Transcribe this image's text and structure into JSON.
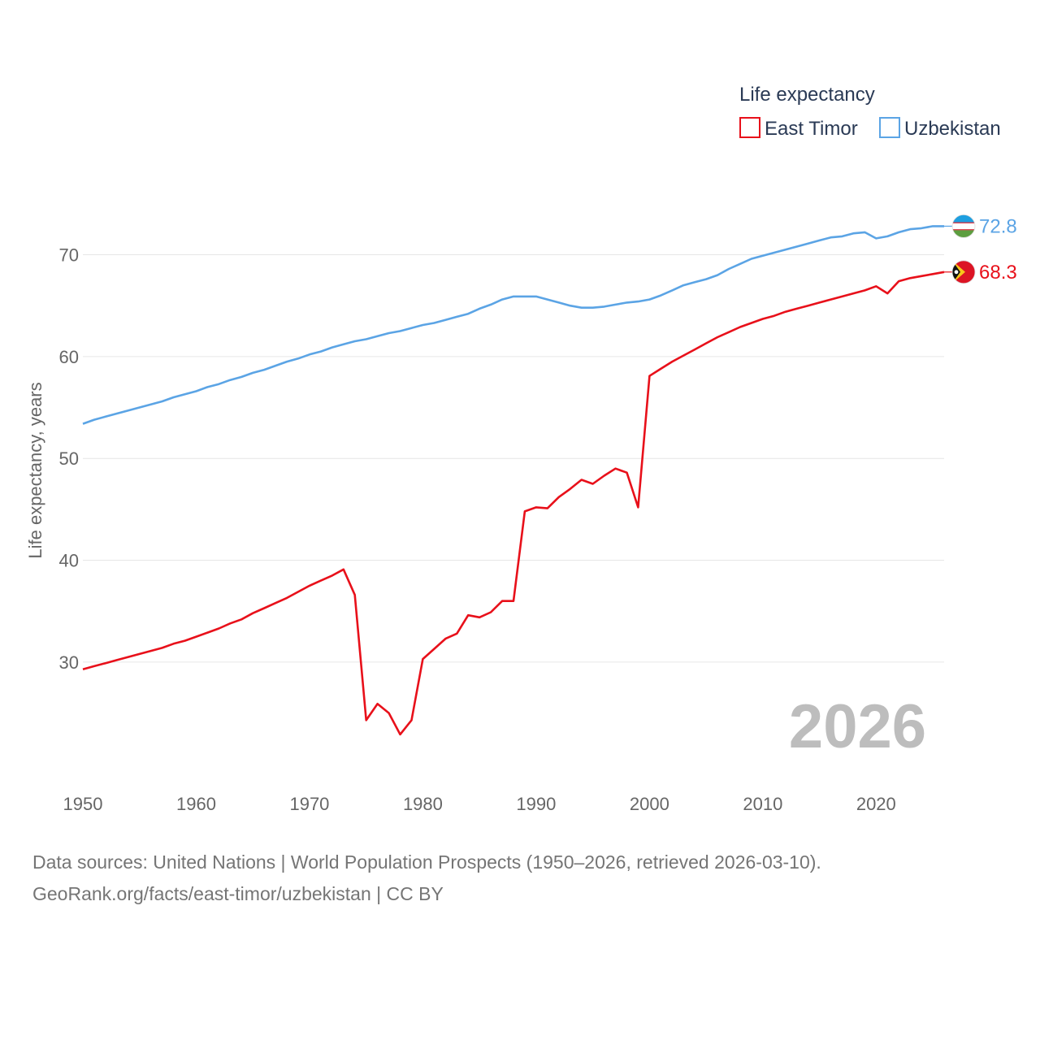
{
  "chart_data": {
    "type": "line",
    "title": "",
    "ylabel": "Life expectancy, years",
    "xlabel": "",
    "xlim": [
      1950,
      2026
    ],
    "ylim": [
      20.5,
      76.5
    ],
    "yticks": [
      30,
      40,
      50,
      60,
      70
    ],
    "xticks": [
      1950,
      1960,
      1970,
      1980,
      1990,
      2000,
      2010,
      2020
    ],
    "grid": true,
    "legend": {
      "title": "Life expectancy",
      "placement": "top-right"
    },
    "year_watermark": "2026",
    "series": [
      {
        "name": "East Timor",
        "color": "#e8101a",
        "end_label": "68.3",
        "x": [
          1950,
          1951,
          1952,
          1953,
          1954,
          1955,
          1956,
          1957,
          1958,
          1959,
          1960,
          1961,
          1962,
          1963,
          1964,
          1965,
          1966,
          1967,
          1968,
          1969,
          1970,
          1971,
          1972,
          1973,
          1974,
          1975,
          1976,
          1977,
          1978,
          1979,
          1980,
          1981,
          1982,
          1983,
          1984,
          1985,
          1986,
          1987,
          1988,
          1989,
          1990,
          1991,
          1992,
          1993,
          1994,
          1995,
          1996,
          1997,
          1998,
          1999,
          2000,
          2001,
          2002,
          2003,
          2004,
          2005,
          2006,
          2007,
          2008,
          2009,
          2010,
          2011,
          2012,
          2013,
          2014,
          2015,
          2016,
          2017,
          2018,
          2019,
          2020,
          2021,
          2022,
          2023,
          2024,
          2025,
          2026
        ],
        "values": [
          29.3,
          29.6,
          29.9,
          30.2,
          30.5,
          30.8,
          31.1,
          31.4,
          31.8,
          32.1,
          32.5,
          32.9,
          33.3,
          33.8,
          34.2,
          34.8,
          35.3,
          35.8,
          36.3,
          36.9,
          37.5,
          38.0,
          38.5,
          39.1,
          36.6,
          24.3,
          25.9,
          25.0,
          22.9,
          24.3,
          30.3,
          31.3,
          32.3,
          32.8,
          34.6,
          34.4,
          34.9,
          36.0,
          36.0,
          44.8,
          45.2,
          45.1,
          46.2,
          47.0,
          47.9,
          47.5,
          48.3,
          49.0,
          48.6,
          45.2,
          58.1,
          58.8,
          59.5,
          60.1,
          60.7,
          61.3,
          61.9,
          62.4,
          62.9,
          63.3,
          63.7,
          64.0,
          64.4,
          64.7,
          65.0,
          65.3,
          65.6,
          65.9,
          66.2,
          66.5,
          66.9,
          66.2,
          67.4,
          67.7,
          67.9,
          68.1,
          68.3
        ]
      },
      {
        "name": "Uzbekistan",
        "color": "#5ba4e5",
        "end_label": "72.8",
        "x": [
          1950,
          1951,
          1952,
          1953,
          1954,
          1955,
          1956,
          1957,
          1958,
          1959,
          1960,
          1961,
          1962,
          1963,
          1964,
          1965,
          1966,
          1967,
          1968,
          1969,
          1970,
          1971,
          1972,
          1973,
          1974,
          1975,
          1976,
          1977,
          1978,
          1979,
          1980,
          1981,
          1982,
          1983,
          1984,
          1985,
          1986,
          1987,
          1988,
          1989,
          1990,
          1991,
          1992,
          1993,
          1994,
          1995,
          1996,
          1997,
          1998,
          1999,
          2000,
          2001,
          2002,
          2003,
          2004,
          2005,
          2006,
          2007,
          2008,
          2009,
          2010,
          2011,
          2012,
          2013,
          2014,
          2015,
          2016,
          2017,
          2018,
          2019,
          2020,
          2021,
          2022,
          2023,
          2024,
          2025,
          2026
        ],
        "values": [
          53.4,
          53.8,
          54.1,
          54.4,
          54.7,
          55.0,
          55.3,
          55.6,
          56.0,
          56.3,
          56.6,
          57.0,
          57.3,
          57.7,
          58.0,
          58.4,
          58.7,
          59.1,
          59.5,
          59.8,
          60.2,
          60.5,
          60.9,
          61.2,
          61.5,
          61.7,
          62.0,
          62.3,
          62.5,
          62.8,
          63.1,
          63.3,
          63.6,
          63.9,
          64.2,
          64.7,
          65.1,
          65.6,
          65.9,
          65.9,
          65.9,
          65.6,
          65.3,
          65.0,
          64.8,
          64.8,
          64.9,
          65.1,
          65.3,
          65.4,
          65.6,
          66.0,
          66.5,
          67.0,
          67.3,
          67.6,
          68.0,
          68.6,
          69.1,
          69.6,
          69.9,
          70.2,
          70.5,
          70.8,
          71.1,
          71.4,
          71.7,
          71.8,
          72.1,
          72.2,
          71.6,
          71.8,
          72.2,
          72.5,
          72.6,
          72.8,
          72.8
        ]
      }
    ]
  },
  "footer": {
    "sources": "Data sources: United Nations | World Population Prospects (1950–2026, retrieved 2026-03-10).",
    "link": "GeoRank.org/facts/east-timor/uzbekistan | CC BY"
  }
}
